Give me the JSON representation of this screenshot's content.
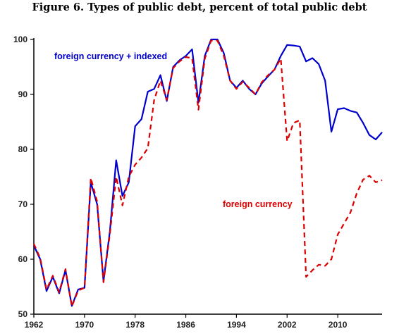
{
  "chart_data": {
    "type": "line",
    "title": "Figure 6. Types of public debt, percent of total public debt",
    "xlabel": "",
    "ylabel": "",
    "xlim": [
      1962,
      2017
    ],
    "ylim": [
      50,
      100
    ],
    "x_ticks": [
      1962,
      1970,
      1978,
      1986,
      1994,
      2002,
      2010
    ],
    "y_ticks": [
      50,
      60,
      70,
      80,
      90,
      100
    ],
    "grid": false,
    "legend": "inline labels",
    "colors": {
      "foreign_currency_indexed": "#0000cc",
      "foreign_currency": "#dd0000"
    },
    "series": [
      {
        "name": "foreign currency + indexed",
        "style": "solid",
        "x": [
          1962,
          1963,
          1964,
          1965,
          1966,
          1967,
          1968,
          1969,
          1970,
          1971,
          1972,
          1973,
          1974,
          1975,
          1976,
          1977,
          1978,
          1979,
          1980,
          1981,
          1982,
          1983,
          1984,
          1985,
          1986,
          1987,
          1988,
          1989,
          1990,
          1991,
          1992,
          1993,
          1994,
          1995,
          1996,
          1997,
          1998,
          1999,
          2000,
          2001,
          2002,
          2003,
          2004,
          2005,
          2006,
          2007,
          2008,
          2009,
          2010,
          2011,
          2012,
          2013,
          2014,
          2015,
          2016,
          2017
        ],
        "values": [
          62.5,
          60.0,
          54.2,
          56.8,
          53.8,
          58.0,
          51.5,
          54.5,
          54.8,
          74.0,
          70.0,
          56.0,
          65.0,
          78.0,
          71.5,
          74.0,
          84.2,
          85.5,
          90.5,
          91.0,
          93.5,
          88.8,
          95.0,
          96.2,
          97.0,
          98.2,
          88.5,
          97.0,
          100.0,
          100.0,
          97.5,
          92.5,
          91.2,
          92.5,
          91.0,
          90.0,
          92.0,
          93.3,
          94.5,
          97.0,
          99.0,
          98.9,
          98.7,
          96.0,
          96.6,
          95.5,
          92.5,
          83.2,
          87.3,
          87.5,
          87.0,
          86.7,
          84.8,
          82.6,
          81.8,
          83.1
        ]
      },
      {
        "name": "foreign currency",
        "style": "dashed",
        "x": [
          1962,
          1963,
          1964,
          1965,
          1966,
          1967,
          1968,
          1969,
          1970,
          1971,
          1972,
          1973,
          1974,
          1975,
          1976,
          1977,
          1978,
          1979,
          1980,
          1981,
          1982,
          1983,
          1984,
          1985,
          1986,
          1987,
          1988,
          1989,
          1990,
          1991,
          1992,
          1993,
          1994,
          1995,
          1996,
          1997,
          1998,
          1999,
          2000,
          2001,
          2002,
          2003,
          2004,
          2005,
          2006,
          2007,
          2008,
          2009,
          2010,
          2011,
          2012,
          2013,
          2014,
          2015,
          2016,
          2017
        ],
        "values": [
          62.8,
          60.2,
          54.5,
          57.0,
          54.0,
          58.2,
          51.4,
          54.3,
          54.8,
          74.8,
          70.5,
          55.8,
          64.5,
          75.0,
          69.8,
          75.0,
          77.2,
          78.5,
          80.2,
          89.0,
          92.5,
          89.0,
          94.8,
          96.0,
          96.8,
          96.6,
          87.2,
          96.5,
          99.8,
          99.8,
          97.0,
          92.5,
          91.0,
          92.3,
          91.2,
          90.0,
          92.2,
          93.5,
          94.5,
          96.5,
          81.5,
          84.8,
          85.3,
          56.8,
          58.0,
          59.0,
          58.8,
          60.0,
          64.5,
          66.5,
          68.5,
          72.0,
          74.5,
          75.2,
          74.0,
          74.4
        ]
      }
    ],
    "annotations": [
      {
        "text": "foreign currency + indexed",
        "series": 0
      },
      {
        "text": "foreign currency",
        "series": 1
      }
    ]
  }
}
